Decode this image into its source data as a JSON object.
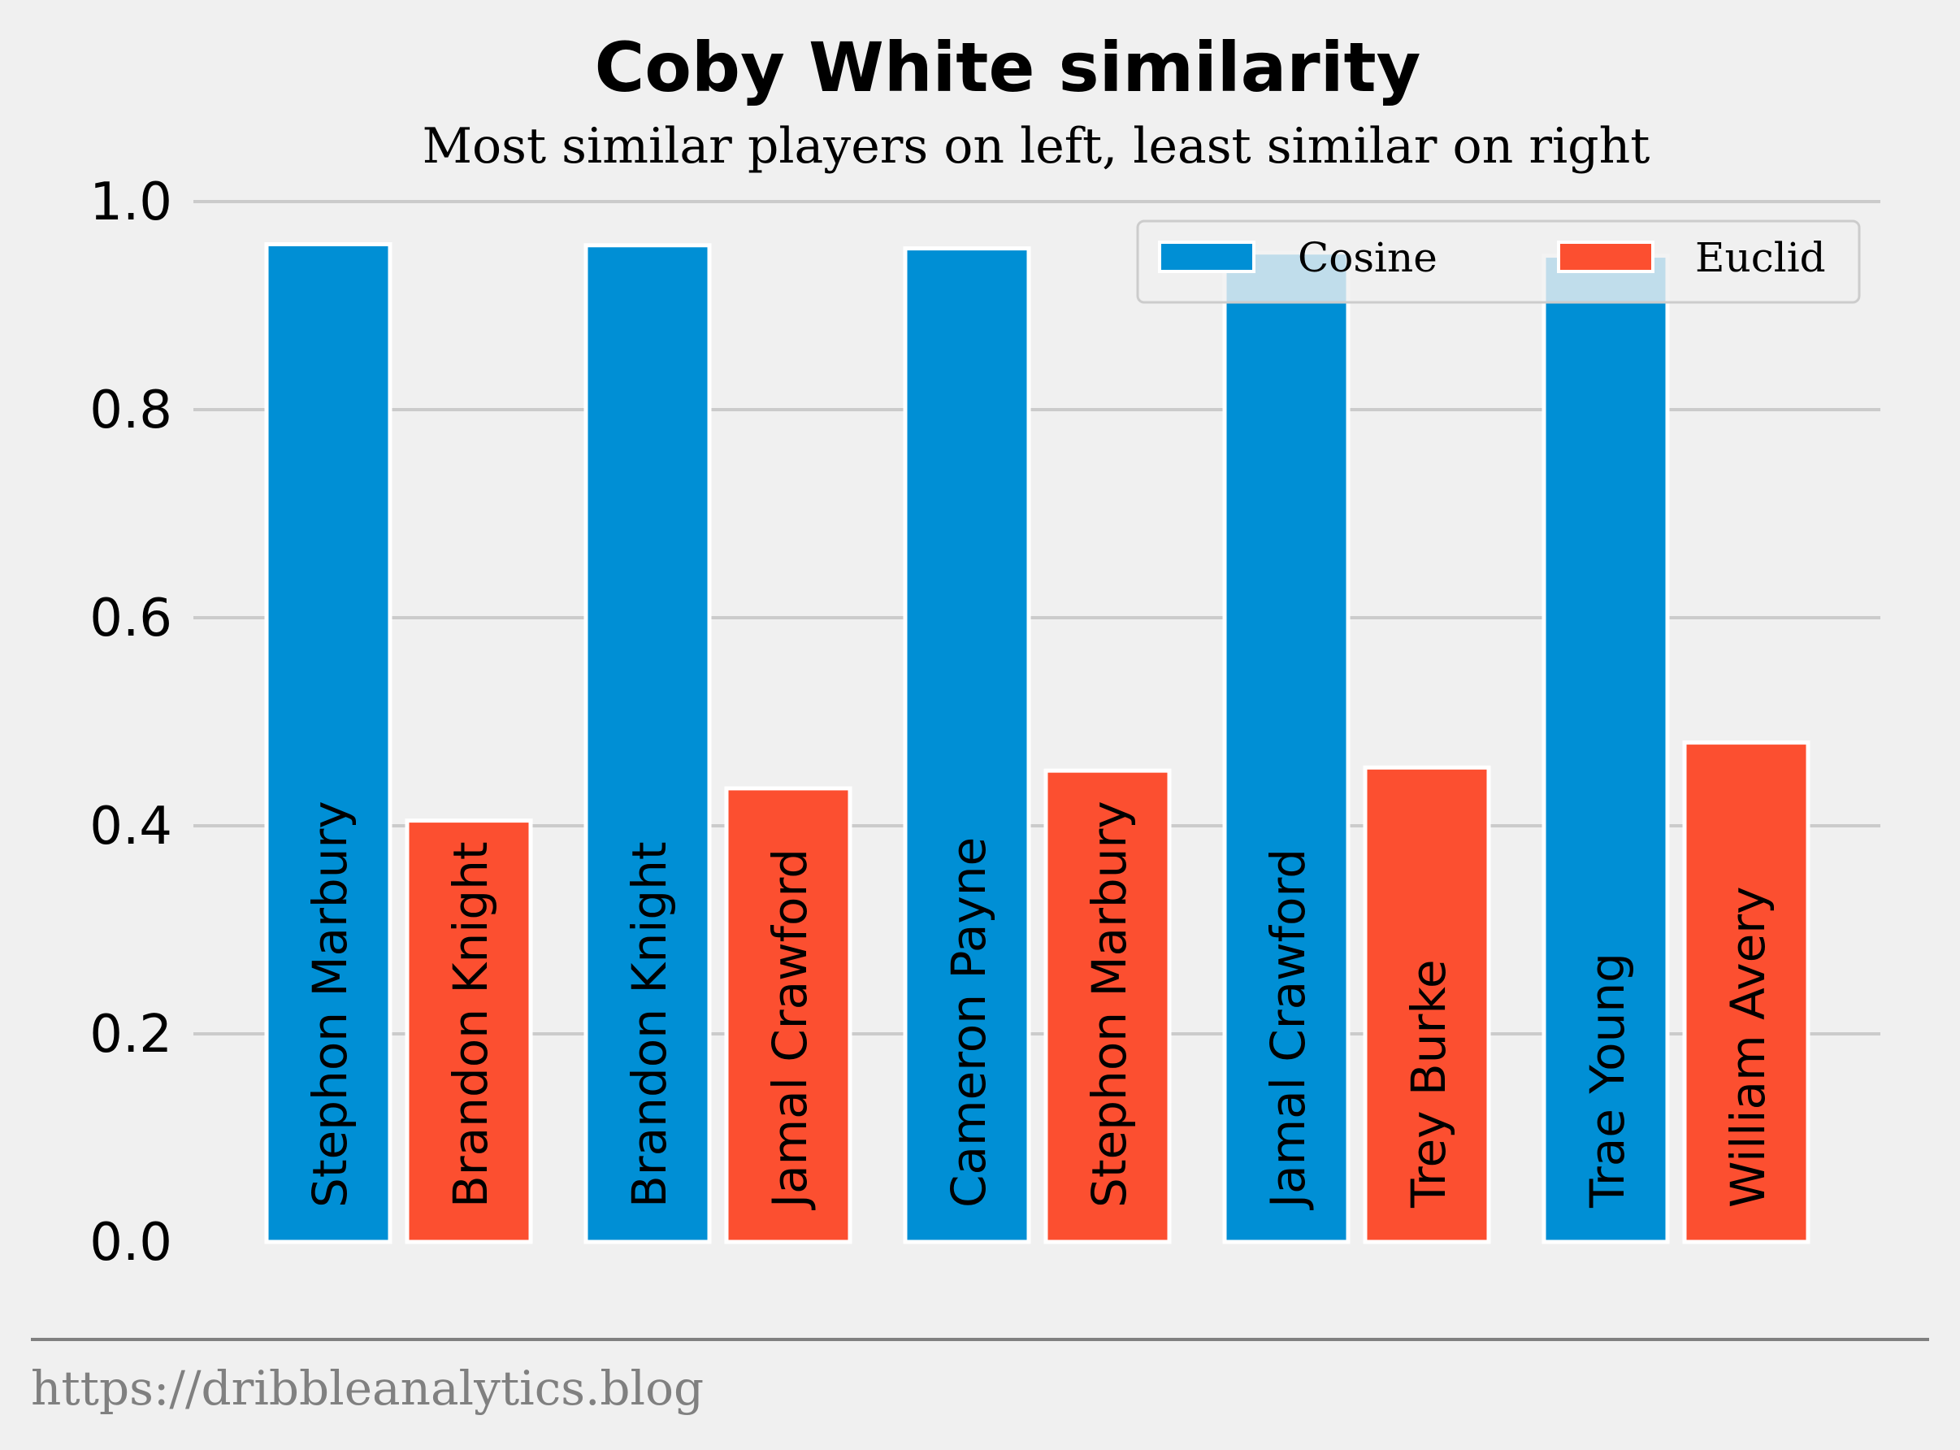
{
  "chart_data": {
    "type": "bar",
    "title": "Coby White similarity",
    "subtitle": "Most similar players on left, least similar on right",
    "xlabel": "",
    "ylabel": "",
    "ylim": [
      0,
      1.0
    ],
    "yticks": [
      "0.0",
      "0.2",
      "0.4",
      "0.6",
      "0.8",
      "1.0"
    ],
    "grid": true,
    "legend_position": "top-right",
    "series": [
      {
        "name": "Cosine",
        "color": "#008fd5",
        "values": [
          0.959,
          0.958,
          0.955,
          0.951,
          0.948
        ],
        "players": [
          "Stephon Marbury",
          "Brandon Knight",
          "Cameron Payne",
          "Jamal Crawford",
          "Trae Young"
        ]
      },
      {
        "name": "Euclid",
        "color": "#fc4f30",
        "values": [
          0.405,
          0.436,
          0.453,
          0.456,
          0.48
        ],
        "players": [
          "Brandon Knight",
          "Jamal Crawford",
          "Stephon Marbury",
          "Trey Burke",
          "William Avery"
        ]
      }
    ]
  },
  "footer": "https://dribbleanalytics.blog"
}
